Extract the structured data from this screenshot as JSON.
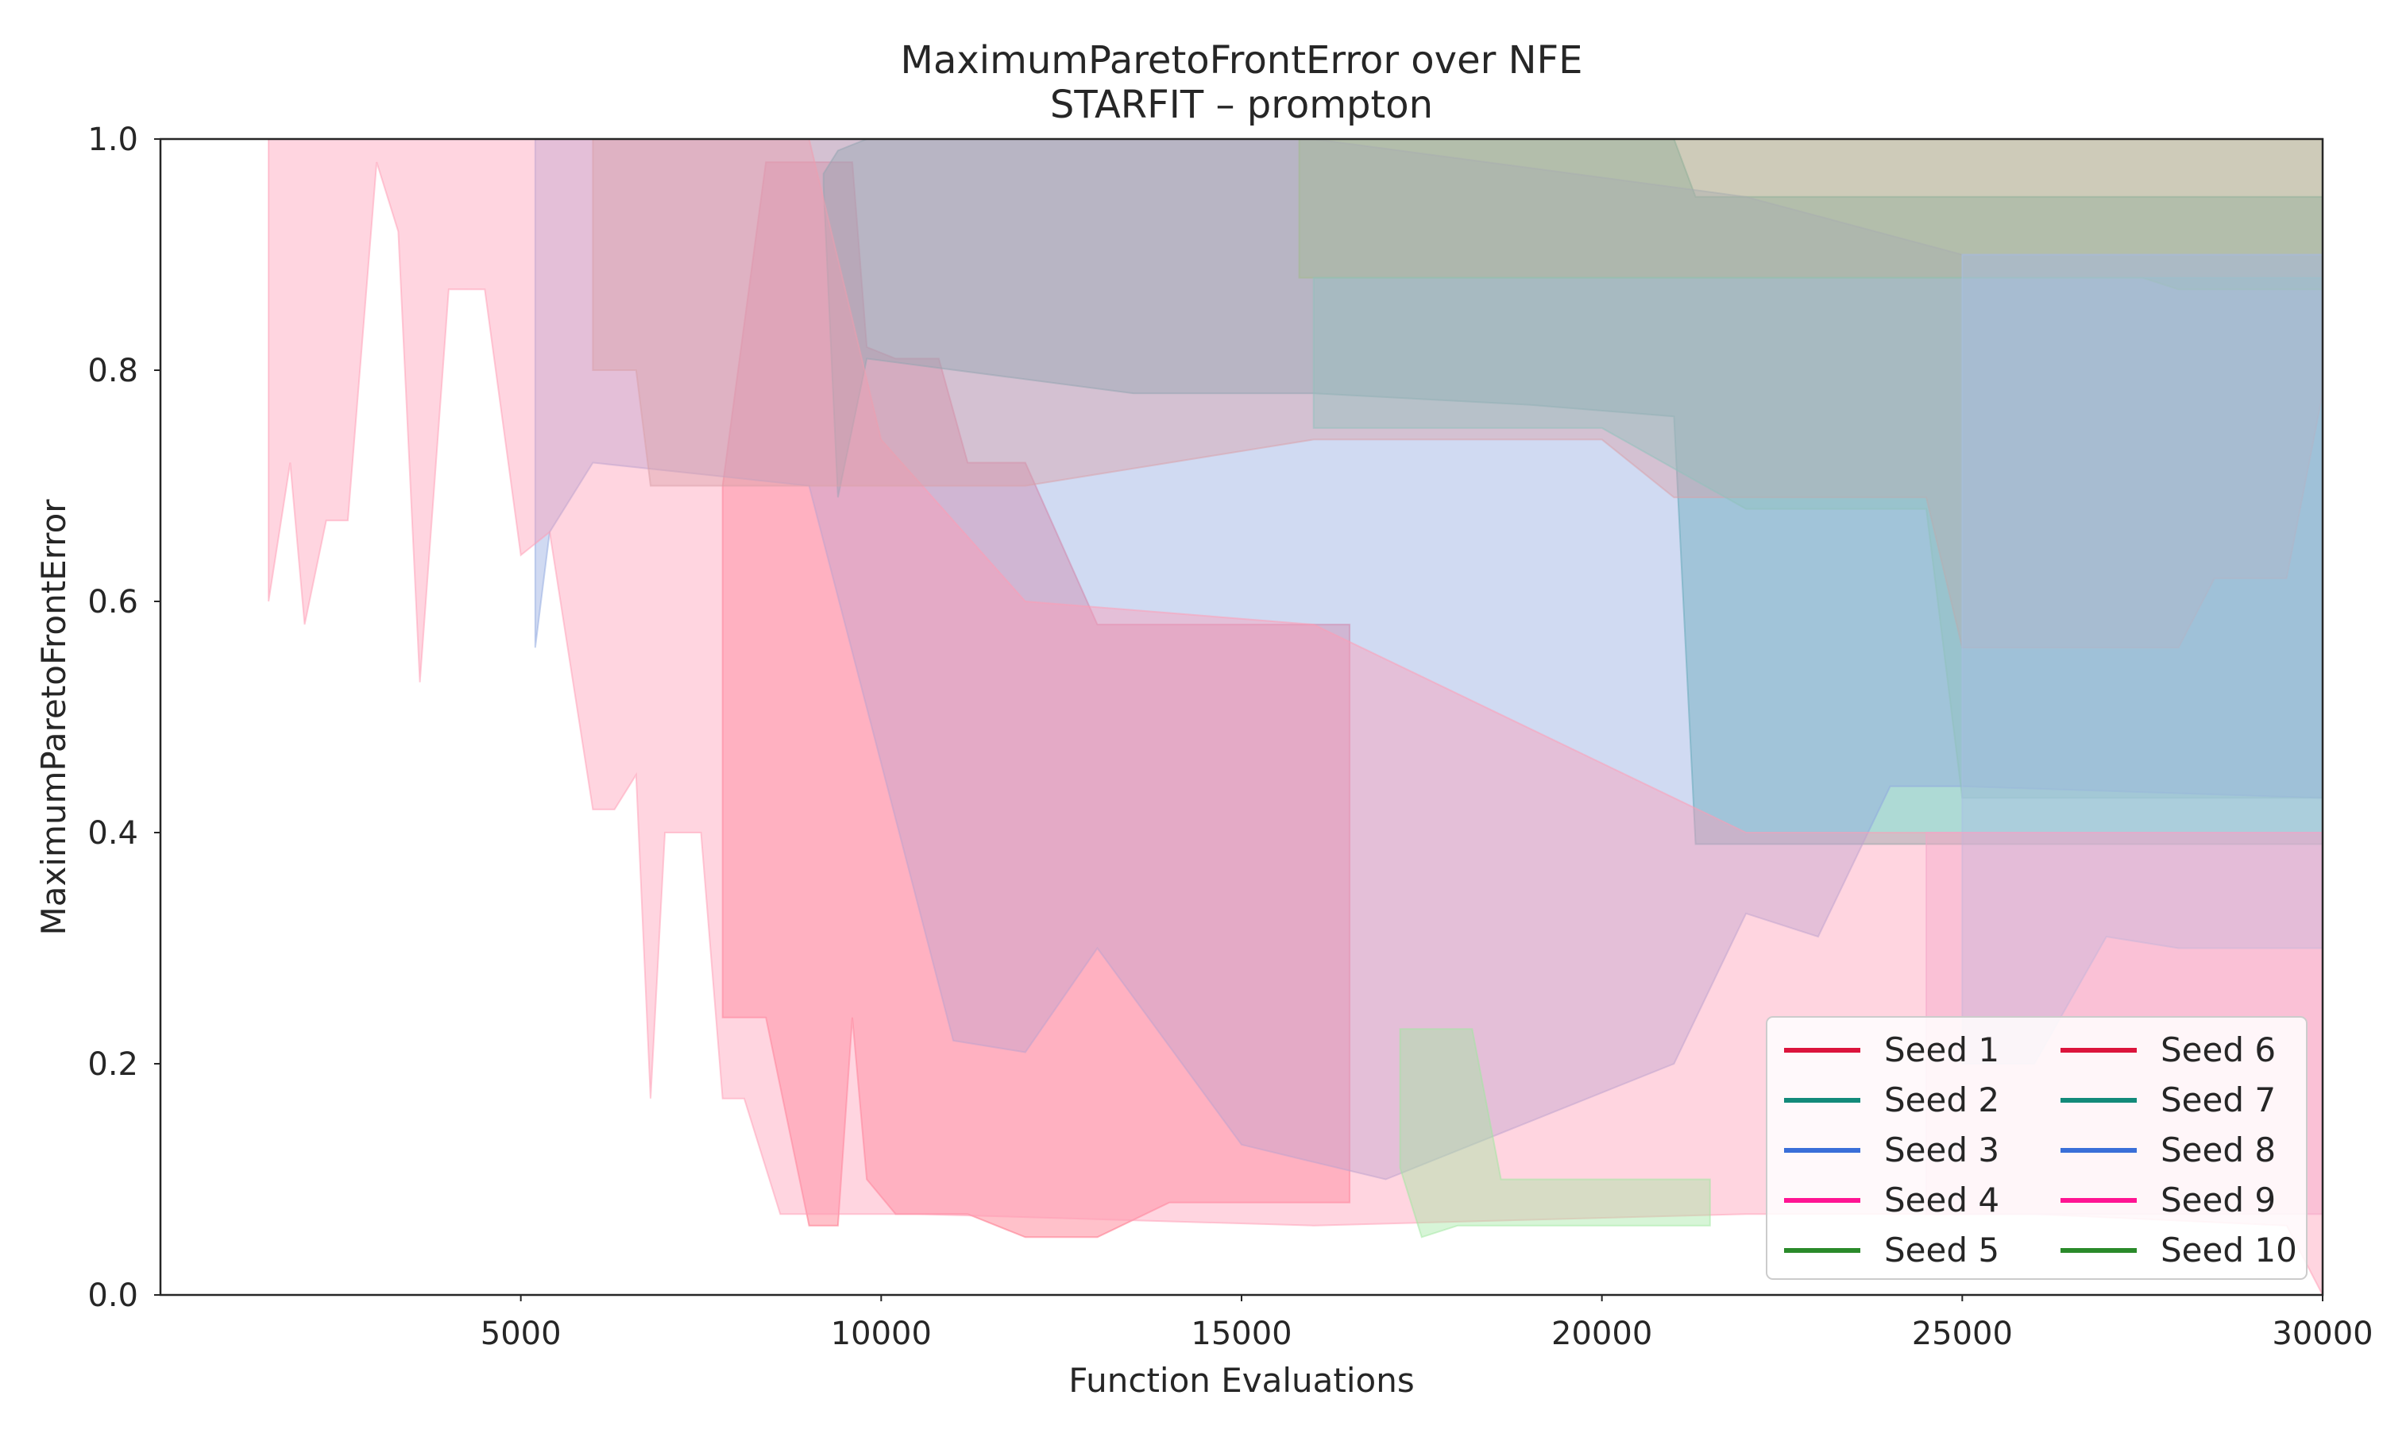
{
  "chart_data": {
    "type": "area",
    "title": "MaximumParetoFrontError over NFE",
    "subtitle": "STARFIT – prompton",
    "xlabel": "Function Evaluations",
    "ylabel": "MaximumParetoFrontError",
    "xlim": [
      0,
      30000
    ],
    "ylim": [
      0.0,
      1.0
    ],
    "xticks": [
      "5000",
      "10000",
      "15000",
      "20000",
      "25000",
      "30000"
    ],
    "yticks": [
      "0.0",
      "0.2",
      "0.4",
      "0.6",
      "0.8",
      "1.0"
    ],
    "grid": false,
    "legend_position": "bottom-right",
    "legend_columns": 2,
    "series": [
      {
        "name": "Seed 1",
        "line_color": "#dc143c",
        "fill_color": "#ff6b81",
        "points": [
          [
            7800,
            0.7
          ],
          [
            8400,
            0.98
          ],
          [
            9000,
            0.98
          ],
          [
            9400,
            0.24
          ],
          [
            9600,
            0.24
          ],
          [
            9800,
            0.15
          ],
          [
            10200,
            0.1
          ],
          [
            10800,
            0.08
          ],
          [
            11200,
            0.07
          ],
          [
            12000,
            0.07
          ],
          [
            13000,
            0.07
          ],
          [
            14000,
            0.07
          ],
          [
            15000,
            0.07
          ],
          [
            16500,
            0.07
          ]
        ],
        "upper": [
          [
            7800,
            0.7
          ],
          [
            8400,
            0.98
          ],
          [
            9000,
            0.98
          ],
          [
            9400,
            0.98
          ],
          [
            9600,
            0.98
          ],
          [
            9800,
            0.82
          ],
          [
            10200,
            0.81
          ],
          [
            10800,
            0.81
          ],
          [
            11200,
            0.72
          ],
          [
            12000,
            0.72
          ],
          [
            13000,
            0.58
          ],
          [
            14000,
            0.58
          ],
          [
            15000,
            0.58
          ],
          [
            16500,
            0.58
          ]
        ],
        "lower": [
          [
            7800,
            0.24
          ],
          [
            8400,
            0.24
          ],
          [
            9000,
            0.06
          ],
          [
            9400,
            0.06
          ],
          [
            9600,
            0.24
          ],
          [
            9800,
            0.1
          ],
          [
            10200,
            0.07
          ],
          [
            10800,
            0.07
          ],
          [
            11200,
            0.07
          ],
          [
            12000,
            0.05
          ],
          [
            13000,
            0.05
          ],
          [
            14000,
            0.08
          ],
          [
            15000,
            0.08
          ],
          [
            16500,
            0.08
          ]
        ]
      },
      {
        "name": "Seed 2",
        "line_color": "#138a7a",
        "fill_color": "#3fa89a",
        "points": [
          [
            9200,
            0.95
          ],
          [
            9400,
            0.7
          ],
          [
            9800,
            0.81
          ],
          [
            13500,
            0.8
          ],
          [
            16000,
            0.78
          ],
          [
            19000,
            0.77
          ],
          [
            21000,
            0.76
          ],
          [
            21300,
            0.39
          ],
          [
            30000,
            0.39
          ]
        ],
        "upper": [
          [
            9200,
            0.97
          ],
          [
            9400,
            0.99
          ],
          [
            9800,
            1.0
          ],
          [
            13500,
            1.0
          ],
          [
            16000,
            1.0
          ],
          [
            19000,
            1.0
          ],
          [
            21000,
            1.0
          ],
          [
            21300,
            0.95
          ],
          [
            30000,
            0.95
          ]
        ],
        "lower": [
          [
            9200,
            0.96
          ],
          [
            9400,
            0.69
          ],
          [
            9800,
            0.81
          ],
          [
            13500,
            0.78
          ],
          [
            16000,
            0.78
          ],
          [
            19000,
            0.77
          ],
          [
            21000,
            0.76
          ],
          [
            21300,
            0.39
          ],
          [
            30000,
            0.39
          ]
        ]
      },
      {
        "name": "Seed 3",
        "line_color": "#3a6fd8",
        "fill_color": "#8fa8e0",
        "points": [
          [
            5200,
            0.72
          ],
          [
            6000,
            0.72
          ],
          [
            9000,
            0.8
          ],
          [
            11000,
            0.7
          ],
          [
            13000,
            0.8
          ],
          [
            15000,
            0.75
          ],
          [
            19000,
            0.7
          ],
          [
            22000,
            0.4
          ],
          [
            25000,
            0.44
          ],
          [
            30000,
            0.43
          ]
        ],
        "upper": [
          [
            5200,
            1.0
          ],
          [
            9000,
            1.0
          ],
          [
            12000,
            1.0
          ],
          [
            16000,
            1.0
          ],
          [
            22000,
            0.95
          ],
          [
            25000,
            0.9
          ],
          [
            30000,
            0.9
          ]
        ],
        "lower": [
          [
            5200,
            0.56
          ],
          [
            5400,
            0.66
          ],
          [
            6000,
            0.72
          ],
          [
            9000,
            0.7
          ],
          [
            11000,
            0.22
          ],
          [
            12000,
            0.21
          ],
          [
            13000,
            0.3
          ],
          [
            15000,
            0.13
          ],
          [
            17000,
            0.1
          ],
          [
            21000,
            0.2
          ],
          [
            22000,
            0.33
          ],
          [
            23000,
            0.31
          ],
          [
            24000,
            0.44
          ],
          [
            25000,
            0.44
          ],
          [
            30000,
            0.43
          ]
        ]
      },
      {
        "name": "Seed 4",
        "line_color": "#ff1493",
        "fill_color": "#ff9cb4",
        "points": [
          [
            1500,
            0.6
          ],
          [
            2500,
            0.7
          ],
          [
            3200,
            0.99
          ],
          [
            4000,
            0.87
          ],
          [
            5000,
            0.66
          ],
          [
            6000,
            0.42
          ],
          [
            7000,
            0.4
          ],
          [
            8000,
            0.17
          ],
          [
            9000,
            0.07
          ],
          [
            10000,
            0.07
          ],
          [
            16000,
            0.06
          ],
          [
            22000,
            0.07
          ],
          [
            26000,
            0.07
          ],
          [
            30000,
            0.06
          ]
        ],
        "upper": [
          [
            1500,
            1.0
          ],
          [
            5000,
            1.0
          ],
          [
            7000,
            1.0
          ],
          [
            9000,
            1.0
          ],
          [
            10000,
            0.74
          ],
          [
            12000,
            0.6
          ],
          [
            16000,
            0.58
          ],
          [
            22000,
            0.4
          ],
          [
            26000,
            0.4
          ],
          [
            30000,
            0.4
          ]
        ],
        "lower": [
          [
            1500,
            0.6
          ],
          [
            1800,
            0.72
          ],
          [
            2000,
            0.58
          ],
          [
            2300,
            0.67
          ],
          [
            2600,
            0.67
          ],
          [
            3000,
            0.98
          ],
          [
            3300,
            0.92
          ],
          [
            3600,
            0.53
          ],
          [
            4000,
            0.87
          ],
          [
            4500,
            0.87
          ],
          [
            5000,
            0.64
          ],
          [
            5400,
            0.66
          ],
          [
            6000,
            0.42
          ],
          [
            6300,
            0.42
          ],
          [
            6600,
            0.45
          ],
          [
            6800,
            0.17
          ],
          [
            7000,
            0.4
          ],
          [
            7500,
            0.4
          ],
          [
            7800,
            0.17
          ],
          [
            8100,
            0.17
          ],
          [
            8600,
            0.07
          ],
          [
            9500,
            0.07
          ],
          [
            10500,
            0.07
          ],
          [
            16000,
            0.06
          ],
          [
            22000,
            0.07
          ],
          [
            26000,
            0.07
          ],
          [
            29500,
            0.06
          ],
          [
            30000,
            0.0
          ]
        ]
      },
      {
        "name": "Seed 5",
        "line_color": "#2a8a2a",
        "fill_color": "#7ad07a",
        "points": [
          [
            15800,
            0.99
          ],
          [
            17000,
            0.97
          ],
          [
            18000,
            0.93
          ],
          [
            21000,
            0.93
          ],
          [
            24500,
            0.92
          ],
          [
            30000,
            0.92
          ]
        ],
        "upper": [
          [
            15800,
            1.0
          ],
          [
            30000,
            1.0
          ]
        ],
        "lower": [
          [
            15800,
            0.88
          ],
          [
            24500,
            0.88
          ],
          [
            27500,
            0.88
          ],
          [
            28000,
            0.87
          ],
          [
            30000,
            0.87
          ]
        ]
      },
      {
        "name": "Seed 6",
        "line_color": "#dc143c",
        "fill_color": "#d9a0a8",
        "points": [
          [
            6000,
            0.8
          ],
          [
            7000,
            0.72
          ],
          [
            9000,
            0.72
          ],
          [
            12000,
            0.72
          ],
          [
            16000,
            0.75
          ],
          [
            20000,
            0.75
          ],
          [
            24500,
            0.7
          ],
          [
            28000,
            0.7
          ],
          [
            30000,
            0.7
          ]
        ],
        "upper": [
          [
            6000,
            1.0
          ],
          [
            30000,
            1.0
          ]
        ],
        "lower": [
          [
            6000,
            0.8
          ],
          [
            6600,
            0.8
          ],
          [
            6800,
            0.7
          ],
          [
            7500,
            0.7
          ],
          [
            8000,
            0.7
          ],
          [
            9000,
            0.7
          ],
          [
            10000,
            0.7
          ],
          [
            12000,
            0.7
          ],
          [
            16000,
            0.74
          ],
          [
            20000,
            0.74
          ],
          [
            21000,
            0.69
          ],
          [
            24500,
            0.69
          ],
          [
            25000,
            0.56
          ],
          [
            28000,
            0.56
          ],
          [
            28500,
            0.62
          ],
          [
            29500,
            0.62
          ],
          [
            30000,
            0.78
          ]
        ]
      },
      {
        "name": "Seed 7",
        "line_color": "#138a7a",
        "fill_color": "#8fc2bc",
        "points": [
          [
            16000,
            0.88
          ],
          [
            18000,
            0.85
          ],
          [
            21000,
            0.82
          ],
          [
            24500,
            0.8
          ],
          [
            27000,
            0.6
          ],
          [
            30000,
            0.6
          ]
        ],
        "upper": [
          [
            16000,
            0.88
          ],
          [
            21000,
            0.88
          ],
          [
            24500,
            0.88
          ],
          [
            30000,
            0.88
          ]
        ],
        "lower": [
          [
            16000,
            0.75
          ],
          [
            20000,
            0.75
          ],
          [
            22000,
            0.68
          ],
          [
            24500,
            0.68
          ],
          [
            25000,
            0.43
          ],
          [
            30000,
            0.43
          ]
        ]
      },
      {
        "name": "Seed 8",
        "line_color": "#3a6fd8",
        "fill_color": "#a8bfe6",
        "points": [
          [
            25000,
            0.65
          ],
          [
            27000,
            0.55
          ],
          [
            28000,
            0.45
          ],
          [
            30000,
            0.45
          ]
        ],
        "upper": [
          [
            25000,
            0.9
          ],
          [
            30000,
            0.9
          ]
        ],
        "lower": [
          [
            25000,
            0.2
          ],
          [
            26000,
            0.2
          ],
          [
            27000,
            0.31
          ],
          [
            28000,
            0.3
          ],
          [
            29000,
            0.3
          ],
          [
            30000,
            0.3
          ]
        ]
      },
      {
        "name": "Seed 9",
        "line_color": "#ff1493",
        "fill_color": "#f4a6c8",
        "points": [
          [
            24500,
            0.3
          ],
          [
            26000,
            0.25
          ],
          [
            27500,
            0.2
          ],
          [
            29000,
            0.2
          ],
          [
            30000,
            0.2
          ]
        ],
        "upper": [
          [
            24500,
            0.4
          ],
          [
            30000,
            0.4
          ]
        ],
        "lower": [
          [
            24500,
            0.07
          ],
          [
            26000,
            0.07
          ],
          [
            27500,
            0.07
          ],
          [
            28500,
            0.07
          ],
          [
            30000,
            0.07
          ]
        ]
      },
      {
        "name": "Seed 10",
        "line_color": "#2a8a2a",
        "fill_color": "#9fe89f",
        "points": [
          [
            17200,
            0.23
          ],
          [
            18000,
            0.15
          ],
          [
            19000,
            0.1
          ],
          [
            21000,
            0.07
          ],
          [
            21500,
            0.06
          ]
        ],
        "upper": [
          [
            17200,
            0.23
          ],
          [
            18200,
            0.23
          ],
          [
            18600,
            0.1
          ],
          [
            21500,
            0.1
          ]
        ],
        "lower": [
          [
            17200,
            0.11
          ],
          [
            17500,
            0.05
          ],
          [
            18000,
            0.06
          ],
          [
            19000,
            0.06
          ],
          [
            21500,
            0.06
          ]
        ]
      }
    ]
  }
}
